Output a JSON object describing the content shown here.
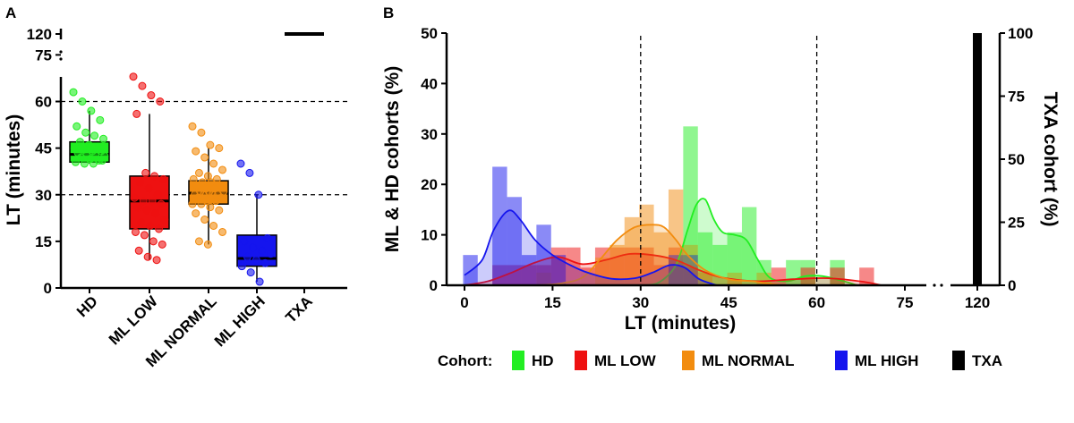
{
  "colors": {
    "HD": "#22ee22",
    "ML LOW": "#ee1111",
    "ML NORMAL": "#f28c0f",
    "ML HIGH": "#1515ee",
    "TXA": "#000000"
  },
  "chart_data": [
    {
      "panel": "A",
      "type": "box",
      "ylabel": "LT (minutes)",
      "y_ticks": [
        "0",
        "15",
        "30",
        "45",
        "60",
        "75",
        "120"
      ],
      "y_axis_break": "between 75 and 120",
      "reference_lines": [
        30,
        60
      ],
      "categories": [
        "HD",
        "ML LOW",
        "ML NORMAL",
        "ML HIGH",
        "TXA"
      ],
      "boxes": [
        {
          "name": "HD",
          "min": 40,
          "q1": 40.5,
          "median": 43,
          "q3": 47,
          "max": 57,
          "points": [
            63,
            60,
            57,
            54,
            52,
            50,
            49,
            48,
            47,
            46,
            45.5,
            45,
            44.5,
            44,
            44,
            43.5,
            43,
            43,
            42.5,
            42,
            41.5,
            41,
            40.5,
            40,
            40,
            41
          ]
        },
        {
          "name": "ML LOW",
          "min": 9,
          "q1": 19,
          "median": 28,
          "q3": 36,
          "max": 56,
          "points": [
            68,
            65,
            62,
            60,
            56,
            37,
            36,
            35,
            34,
            32,
            30,
            29,
            28,
            28,
            27,
            26,
            25,
            24,
            22,
            21,
            20,
            19,
            18,
            17,
            15,
            14,
            12,
            10,
            9
          ]
        },
        {
          "name": "ML NORMAL",
          "min": 14,
          "q1": 27,
          "median": 30.5,
          "q3": 34.5,
          "max": 45,
          "points": [
            52,
            50,
            46,
            45,
            44,
            42,
            40,
            38,
            37,
            36,
            35,
            35,
            34,
            34,
            33,
            33,
            32,
            32,
            31,
            31,
            31,
            30,
            30,
            30,
            30,
            29,
            29,
            28,
            28,
            27,
            27,
            26,
            25,
            24,
            22,
            20,
            18,
            15,
            14
          ]
        },
        {
          "name": "ML HIGH",
          "min": 2,
          "q1": 7,
          "median": 9.5,
          "q3": 17,
          "max": 30,
          "points": [
            40,
            37,
            30,
            16,
            15,
            13,
            12,
            11,
            10,
            9,
            8,
            7,
            5,
            2
          ]
        },
        {
          "name": "TXA",
          "min": 120,
          "q1": 120,
          "median": 120,
          "q3": 120,
          "max": 120,
          "points": []
        }
      ]
    },
    {
      "panel": "B",
      "type": "histogram",
      "xlabel": "LT (minutes)",
      "ylabel_left": "ML & HD cohorts (%)",
      "ylabel_right": "TXA cohort (%)",
      "x_ticks": [
        "0",
        "15",
        "30",
        "45",
        "60",
        "75",
        "120"
      ],
      "x_axis_break": "between 75 and 120",
      "y_left_ticks": [
        "0",
        "10",
        "20",
        "30",
        "40",
        "50"
      ],
      "y_right_ticks": [
        "0",
        "25",
        "50",
        "75",
        "100"
      ],
      "reference_lines": [
        30,
        60
      ],
      "bin_width": 2.5,
      "series": [
        {
          "name": "HD",
          "bins": [
            [
              36,
              5
            ],
            [
              38.5,
              31.5
            ],
            [
              41,
              10.5
            ],
            [
              43.5,
              8
            ],
            [
              46,
              10.5
            ],
            [
              48.5,
              15.5
            ],
            [
              51,
              5
            ],
            [
              53.5,
              0
            ],
            [
              56,
              5
            ],
            [
              58.5,
              5
            ],
            [
              61,
              0
            ],
            [
              63.5,
              5
            ]
          ],
          "density": [
            [
              30,
              0
            ],
            [
              33,
              0.5
            ],
            [
              36,
              4
            ],
            [
              38,
              11
            ],
            [
              39.5,
              16
            ],
            [
              41,
              17
            ],
            [
              42.5,
              13
            ],
            [
              44,
              10.5
            ],
            [
              46,
              10
            ],
            [
              48,
              9
            ],
            [
              50,
              5
            ],
            [
              52,
              1.5
            ],
            [
              55,
              0.8
            ],
            [
              58,
              1.8
            ],
            [
              61,
              1.8
            ],
            [
              64,
              1
            ],
            [
              67,
              0
            ]
          ]
        },
        {
          "name": "ML LOW",
          "bins": [
            [
              6,
              4
            ],
            [
              8.5,
              4
            ],
            [
              11,
              4
            ],
            [
              13.5,
              4
            ],
            [
              16,
              7.5
            ],
            [
              18.5,
              7.5
            ],
            [
              21,
              3.5
            ],
            [
              23.5,
              7.5
            ],
            [
              26,
              7.5
            ],
            [
              28.5,
              7.5
            ],
            [
              31,
              7.5
            ],
            [
              33.5,
              4
            ],
            [
              36,
              7.5
            ],
            [
              38.5,
              3.5
            ],
            [
              53.5,
              3.5
            ],
            [
              58.5,
              3.5
            ],
            [
              63.5,
              3.5
            ],
            [
              68.5,
              3.5
            ]
          ],
          "density": [
            [
              0,
              0
            ],
            [
              4,
              0.8
            ],
            [
              8,
              2.5
            ],
            [
              12,
              4.5
            ],
            [
              16,
              5.6
            ],
            [
              20,
              4.2
            ],
            [
              24,
              5
            ],
            [
              28,
              6.2
            ],
            [
              32,
              6
            ],
            [
              36,
              5
            ],
            [
              40,
              3
            ],
            [
              44,
              1.5
            ],
            [
              50,
              0.8
            ],
            [
              56,
              1.2
            ],
            [
              62,
              1.4
            ],
            [
              68,
              0.7
            ],
            [
              71,
              0
            ]
          ]
        },
        {
          "name": "ML NORMAL",
          "bins": [
            [
              13.5,
              2.5
            ],
            [
              23.5,
              5.5
            ],
            [
              26,
              8
            ],
            [
              28.5,
              13.5
            ],
            [
              31,
              16
            ],
            [
              33.5,
              10.5
            ],
            [
              36,
              19
            ],
            [
              38.5,
              8
            ],
            [
              41,
              2.5
            ],
            [
              46,
              2.5
            ],
            [
              51,
              2.5
            ]
          ],
          "density": [
            [
              12,
              0
            ],
            [
              16,
              0.3
            ],
            [
              20,
              1.5
            ],
            [
              23,
              5
            ],
            [
              26,
              9
            ],
            [
              29,
              11.5
            ],
            [
              32,
              12
            ],
            [
              34,
              11.5
            ],
            [
              36,
              9
            ],
            [
              38,
              6
            ],
            [
              41,
              3
            ],
            [
              45,
              1.2
            ],
            [
              49,
              0.8
            ],
            [
              52,
              0.3
            ],
            [
              54,
              0
            ]
          ]
        },
        {
          "name": "ML HIGH",
          "bins": [
            [
              1,
              6
            ],
            [
              3.5,
              0
            ],
            [
              6,
              23.5
            ],
            [
              8.5,
              17.5
            ],
            [
              11,
              6
            ],
            [
              13.5,
              12
            ],
            [
              16,
              6
            ],
            [
              33.5,
              0
            ],
            [
              36,
              6
            ],
            [
              38.5,
              6
            ]
          ],
          "density": [
            [
              0,
              2
            ],
            [
              3,
              5
            ],
            [
              5,
              11
            ],
            [
              7.5,
              14.8
            ],
            [
              9.5,
              13
            ],
            [
              12,
              9
            ],
            [
              15,
              6
            ],
            [
              18,
              4
            ],
            [
              21,
              2.5
            ],
            [
              25,
              1.3
            ],
            [
              29,
              1.4
            ],
            [
              32,
              2.5
            ],
            [
              35,
              4
            ],
            [
              37.5,
              3.5
            ],
            [
              40,
              1.2
            ],
            [
              43,
              0
            ]
          ]
        },
        {
          "name": "TXA",
          "bins": [
            [
              120,
              100
            ]
          ],
          "axis": "right"
        }
      ],
      "legend": {
        "title": "Cohort:",
        "entries": [
          "HD",
          "ML LOW",
          "ML NORMAL",
          "ML HIGH",
          "TXA"
        ],
        "placement": "bottom"
      }
    }
  ]
}
